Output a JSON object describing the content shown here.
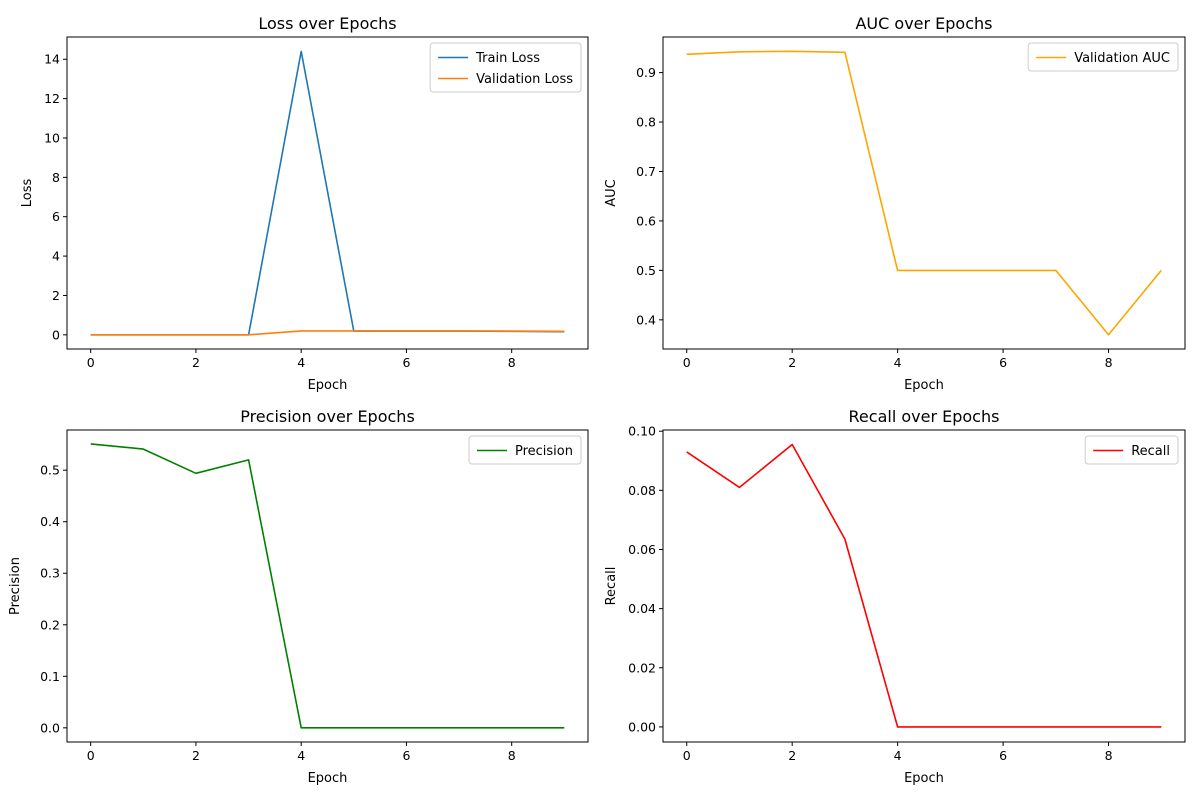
{
  "chart_data": [
    {
      "type": "line",
      "title": "Loss over Epochs",
      "xlabel": "Epoch",
      "ylabel": "Loss",
      "xlim": [
        -0.45,
        9.45
      ],
      "ylim": [
        -0.72,
        15.13
      ],
      "xticks": [
        0,
        2,
        4,
        6,
        8
      ],
      "yticks": [
        0,
        2,
        4,
        6,
        8,
        10,
        12,
        14
      ],
      "ytick_labels": [
        "0",
        "2",
        "4",
        "6",
        "8",
        "10",
        "12",
        "14"
      ],
      "legend_position": "top-right",
      "grid": false,
      "x": [
        0,
        1,
        2,
        3,
        4,
        5,
        6,
        7,
        8,
        9
      ],
      "series": [
        {
          "name": "Train Loss",
          "color": "#1f77b4",
          "values": [
            0.0,
            0.0,
            0.0,
            0.0,
            14.4,
            0.19,
            0.19,
            0.19,
            0.18,
            0.16
          ]
        },
        {
          "name": "Validation Loss",
          "color": "#ff7f0e",
          "values": [
            0.0,
            0.0,
            0.0,
            0.0,
            0.2,
            0.2,
            0.2,
            0.2,
            0.19,
            0.18
          ]
        }
      ]
    },
    {
      "type": "line",
      "title": "AUC over Epochs",
      "xlabel": "Epoch",
      "ylabel": "AUC",
      "xlim": [
        -0.45,
        9.45
      ],
      "ylim": [
        0.341,
        0.972
      ],
      "xticks": [
        0,
        2,
        4,
        6,
        8
      ],
      "yticks": [
        0.4,
        0.5,
        0.6,
        0.7,
        0.8,
        0.9
      ],
      "ytick_labels": [
        "0.4",
        "0.5",
        "0.6",
        "0.7",
        "0.8",
        "0.9"
      ],
      "legend_position": "top-right",
      "grid": false,
      "x": [
        0,
        1,
        2,
        3,
        4,
        5,
        6,
        7,
        8,
        9
      ],
      "series": [
        {
          "name": "Validation AUC",
          "color": "#ffa500",
          "values": [
            0.937,
            0.942,
            0.943,
            0.941,
            0.5,
            0.5,
            0.5,
            0.5,
            0.37,
            0.5
          ]
        }
      ]
    },
    {
      "type": "line",
      "title": "Precision over Epochs",
      "xlabel": "Epoch",
      "ylabel": "Precision",
      "xlim": [
        -0.45,
        9.45
      ],
      "ylim": [
        -0.0275,
        0.578
      ],
      "xticks": [
        0,
        2,
        4,
        6,
        8
      ],
      "yticks": [
        0.0,
        0.1,
        0.2,
        0.3,
        0.4,
        0.5
      ],
      "ytick_labels": [
        "0.0",
        "0.1",
        "0.2",
        "0.3",
        "0.4",
        "0.5"
      ],
      "legend_position": "top-right",
      "grid": false,
      "x": [
        0,
        1,
        2,
        3,
        4,
        5,
        6,
        7,
        8,
        9
      ],
      "series": [
        {
          "name": "Precision",
          "color": "#008000",
          "values": [
            0.551,
            0.541,
            0.494,
            0.52,
            0.0,
            0.0,
            0.0,
            0.0,
            0.0,
            0.0
          ]
        }
      ]
    },
    {
      "type": "line",
      "title": "Recall over Epochs",
      "xlabel": "Epoch",
      "ylabel": "Recall",
      "xlim": [
        -0.45,
        9.45
      ],
      "ylim": [
        -0.0051,
        0.1004
      ],
      "xticks": [
        0,
        2,
        4,
        6,
        8
      ],
      "yticks": [
        0.0,
        0.02,
        0.04,
        0.06,
        0.08,
        0.1
      ],
      "ytick_labels": [
        "0.00",
        "0.02",
        "0.04",
        "0.06",
        "0.08",
        "0.10"
      ],
      "legend_position": "top-right",
      "grid": false,
      "x": [
        0,
        1,
        2,
        3,
        4,
        5,
        6,
        7,
        8,
        9
      ],
      "series": [
        {
          "name": "Recall",
          "color": "#ff0000",
          "values": [
            0.093,
            0.081,
            0.0955,
            0.0635,
            0.0,
            0.0,
            0.0,
            0.0,
            0.0,
            0.0
          ]
        }
      ]
    }
  ]
}
